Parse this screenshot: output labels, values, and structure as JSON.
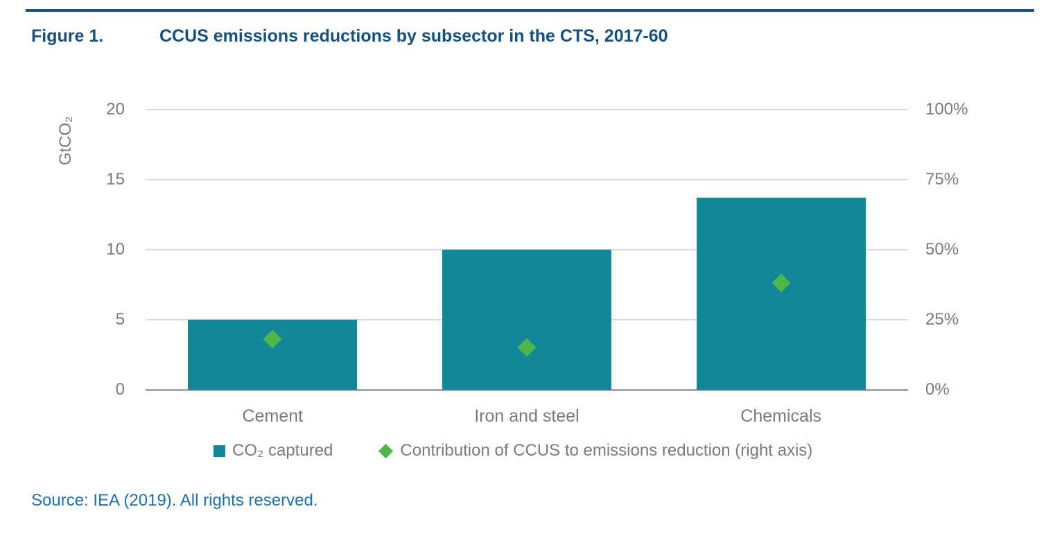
{
  "figure": {
    "label": "Figure 1.",
    "title": "CCUS emissions reductions by subsector in the CTS, 2017-60"
  },
  "source_line": "Source: IEA (2019). All rights reserved.",
  "legend": {
    "items": [
      {
        "marker": "square",
        "label": "CO₂ captured"
      },
      {
        "marker": "diamond",
        "label": "Contribution of CCUS to emissions reduction (right axis)"
      }
    ]
  },
  "colors": {
    "heading_navy": "#16507e",
    "bar_teal": "#12879a",
    "diamond_green": "#4db848",
    "axis_gray": "#7a7a7a",
    "gridline_gray": "#d9d9d9",
    "baseline_gray": "#a6a6a6",
    "source_blue": "#1d6fad"
  },
  "chart_data": {
    "type": "bar",
    "categories": [
      "Cement",
      "Iron and steel",
      "Chemicals"
    ],
    "series": [
      {
        "name": "CO₂ captured",
        "type": "bar",
        "axis": "left",
        "values": [
          5.0,
          10.0,
          13.7
        ],
        "color": "#12879a"
      },
      {
        "name": "Contribution of CCUS to emissions reduction (right axis)",
        "type": "scatter",
        "marker": "diamond",
        "axis": "right",
        "values": [
          18,
          15,
          38
        ],
        "color": "#4db848"
      }
    ],
    "left_axis": {
      "label": "GtCO₂",
      "min": 0,
      "max": 20,
      "ticks": [
        0,
        5,
        10,
        15,
        20
      ]
    },
    "right_axis": {
      "min": 0,
      "max": 100,
      "ticks": [
        0,
        25,
        50,
        75,
        100
      ],
      "tick_labels": [
        "0%",
        "25%",
        "50%",
        "75%",
        "100%"
      ]
    },
    "grid": true,
    "legend_position": "bottom"
  }
}
